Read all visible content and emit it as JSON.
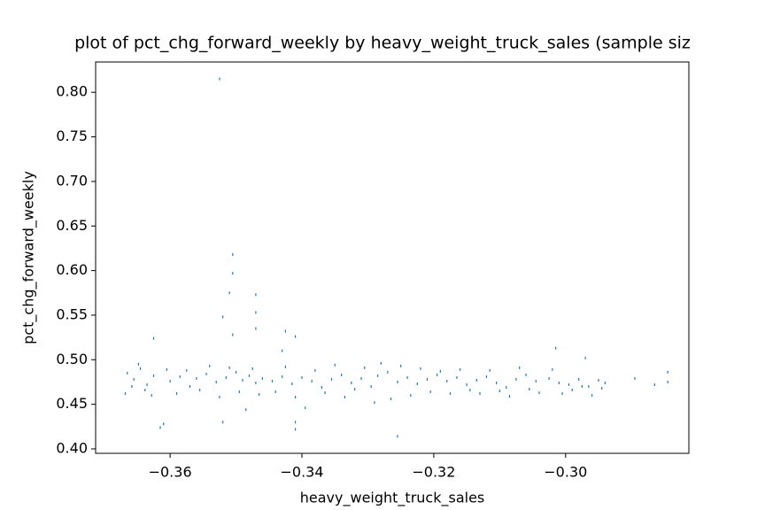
{
  "chart_data": {
    "type": "scatter",
    "title": "plot of pct_chg_forward_weekly by heavy_weight_truck_sales (sample siz",
    "xlabel": "heavy_weight_truck_sales",
    "ylabel": "pct_chg_forward_weekly",
    "color": "#1f77b4",
    "xlim": [
      -0.3713,
      -0.2813
    ],
    "ylim": [
      0.395,
      0.834
    ],
    "xticks": [
      {
        "value": -0.36,
        "label": "−0.36"
      },
      {
        "value": -0.34,
        "label": "−0.34"
      },
      {
        "value": -0.32,
        "label": "−0.32"
      },
      {
        "value": -0.3,
        "label": "−0.30"
      }
    ],
    "yticks": [
      {
        "value": 0.4,
        "label": "0.40"
      },
      0.45,
      {
        "value": 0.5,
        "label": "0.50"
      },
      0.55,
      {
        "value": 0.6,
        "label": "0.60"
      },
      0.65,
      {
        "value": 0.7,
        "label": "0.70"
      },
      0.75,
      {
        "value": 0.8,
        "label": "0.80"
      }
    ],
    "x": [
      -0.3525,
      -0.3505,
      -0.3505,
      -0.351,
      -0.352,
      -0.3505,
      -0.347,
      -0.347,
      -0.347,
      -0.3425,
      -0.341,
      -0.3625,
      -0.3615,
      -0.361,
      -0.341,
      -0.341,
      -0.3255,
      -0.352,
      -0.3015,
      -0.297,
      -0.343,
      -0.3665,
      -0.3655,
      -0.3645,
      -0.3635,
      -0.3625,
      -0.36,
      -0.3585,
      -0.357,
      -0.356,
      -0.3545,
      -0.353,
      -0.3515,
      -0.35,
      -0.349,
      -0.348,
      -0.347,
      -0.346,
      -0.3445,
      -0.343,
      -0.3415,
      -0.34,
      -0.3385,
      -0.337,
      -0.3355,
      -0.334,
      -0.3325,
      -0.331,
      -0.3295,
      -0.3285,
      -0.327,
      -0.3255,
      -0.324,
      -0.3225,
      -0.321,
      -0.3195,
      -0.318,
      -0.3165,
      -0.315,
      -0.3135,
      -0.312,
      -0.3105,
      -0.309,
      -0.3075,
      -0.306,
      -0.3045,
      -0.3025,
      -0.301,
      -0.2995,
      -0.298,
      -0.2965,
      -0.295,
      -0.294,
      -0.2895,
      -0.2865,
      -0.2845,
      -0.3668,
      -0.3658,
      -0.3648,
      -0.3638,
      -0.3628,
      -0.3605,
      -0.359,
      -0.3575,
      -0.3555,
      -0.354,
      -0.3525,
      -0.351,
      -0.3495,
      -0.3485,
      -0.3475,
      -0.3465,
      -0.344,
      -0.3425,
      -0.341,
      -0.3395,
      -0.338,
      -0.3365,
      -0.335,
      -0.3335,
      -0.332,
      -0.3305,
      -0.329,
      -0.328,
      -0.3265,
      -0.325,
      -0.3235,
      -0.322,
      -0.3205,
      -0.319,
      -0.3175,
      -0.316,
      -0.3145,
      -0.313,
      -0.3115,
      -0.31,
      -0.3085,
      -0.307,
      -0.3055,
      -0.304,
      -0.302,
      -0.3005,
      -0.299,
      -0.2975,
      -0.296,
      -0.2945,
      -0.2845
    ],
    "values": [
      0.815,
      0.618,
      0.597,
      0.575,
      0.548,
      0.528,
      0.573,
      0.553,
      0.535,
      0.532,
      0.526,
      0.524,
      0.424,
      0.428,
      0.422,
      0.43,
      0.414,
      0.43,
      0.513,
      0.502,
      0.51,
      0.485,
      0.478,
      0.49,
      0.472,
      0.482,
      0.476,
      0.481,
      0.47,
      0.479,
      0.484,
      0.475,
      0.48,
      0.486,
      0.477,
      0.482,
      0.474,
      0.479,
      0.476,
      0.481,
      0.473,
      0.48,
      0.476,
      0.469,
      0.478,
      0.483,
      0.474,
      0.479,
      0.47,
      0.482,
      0.486,
      0.475,
      0.48,
      0.473,
      0.478,
      0.483,
      0.476,
      0.48,
      0.472,
      0.477,
      0.481,
      0.474,
      0.469,
      0.478,
      0.483,
      0.476,
      0.479,
      0.474,
      0.472,
      0.478,
      0.47,
      0.477,
      0.474,
      0.479,
      0.472,
      0.475,
      0.462,
      0.47,
      0.495,
      0.466,
      0.46,
      0.489,
      0.462,
      0.488,
      0.466,
      0.493,
      0.458,
      0.491,
      0.464,
      0.444,
      0.49,
      0.461,
      0.464,
      0.492,
      0.458,
      0.446,
      0.488,
      0.463,
      0.494,
      0.458,
      0.467,
      0.491,
      0.452,
      0.496,
      0.456,
      0.493,
      0.46,
      0.49,
      0.464,
      0.487,
      0.462,
      0.489,
      0.466,
      0.462,
      0.488,
      0.465,
      0.459,
      0.491,
      0.467,
      0.463,
      0.489,
      0.462,
      0.466,
      0.47,
      0.46,
      0.468,
      0.486
    ]
  }
}
